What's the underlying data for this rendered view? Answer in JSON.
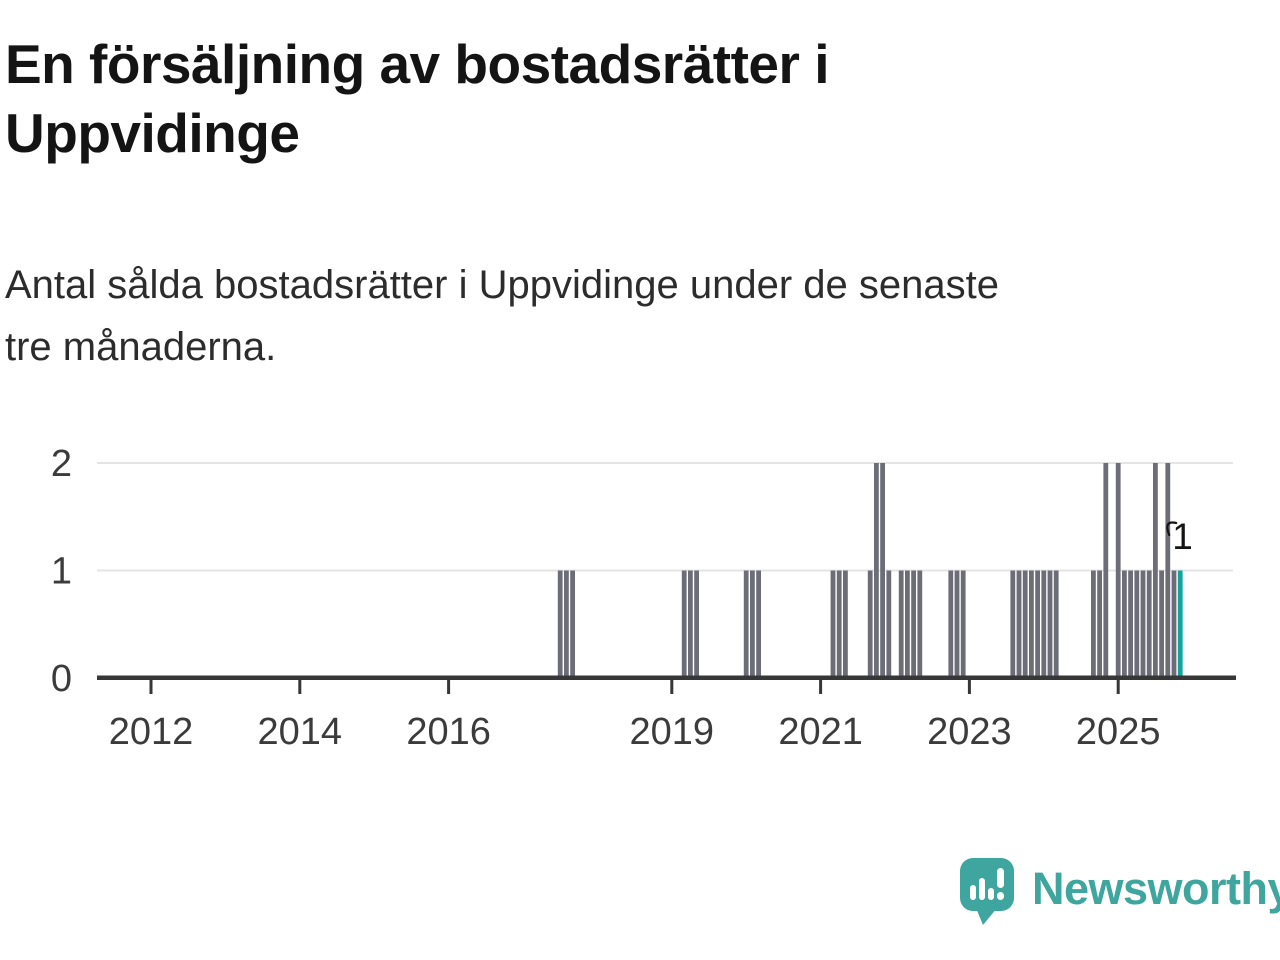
{
  "title_lines": [
    "En försäljning av bostadsrätter i",
    "Uppvidinge"
  ],
  "subtitle_lines": [
    "Antal sålda bostadsrätter i Uppvidinge under de senaste",
    "tre månaderna."
  ],
  "logo": {
    "text": "Newsworthy",
    "color": "#3ea69e"
  },
  "colors": {
    "bar": "#6d6d77",
    "highlight": "#10a49b",
    "grid": "#e4e4e4",
    "axis": "#373737",
    "tick_label": "#3b3b3b",
    "annotation": "#141414",
    "background": "#ffffff"
  },
  "chart_data": {
    "type": "bar",
    "title": "En försäljning av bostadsrätter i Uppvidinge",
    "subtitle": "Antal sålda bostadsrätter i Uppvidinge under de senaste tre månaderna.",
    "xlabel": "",
    "ylabel": "",
    "ylim": [
      0,
      2
    ],
    "y_ticks": [
      "0",
      "1",
      "2"
    ],
    "x_tick_years": [
      "2012",
      "2014",
      "2016",
      "2019",
      "2021",
      "2023",
      "2025"
    ],
    "x_range_months": [
      "2011-04",
      "2026-05"
    ],
    "grid": "horizontal",
    "legend": "none",
    "unlisted_months_value": 0,
    "highlight_month": "2025-11",
    "annotation": {
      "text": "1",
      "month": "2025-11",
      "value": 1
    },
    "months": [
      {
        "m": "2017-07",
        "v": 1
      },
      {
        "m": "2017-08",
        "v": 1
      },
      {
        "m": "2017-09",
        "v": 1
      },
      {
        "m": "2019-03",
        "v": 1
      },
      {
        "m": "2019-04",
        "v": 1
      },
      {
        "m": "2019-05",
        "v": 1
      },
      {
        "m": "2020-01",
        "v": 1
      },
      {
        "m": "2020-02",
        "v": 1
      },
      {
        "m": "2020-03",
        "v": 1
      },
      {
        "m": "2021-03",
        "v": 1
      },
      {
        "m": "2021-04",
        "v": 1
      },
      {
        "m": "2021-05",
        "v": 1
      },
      {
        "m": "2021-09",
        "v": 1
      },
      {
        "m": "2021-10",
        "v": 2
      },
      {
        "m": "2021-11",
        "v": 2
      },
      {
        "m": "2021-12",
        "v": 1
      },
      {
        "m": "2022-02",
        "v": 1
      },
      {
        "m": "2022-03",
        "v": 1
      },
      {
        "m": "2022-04",
        "v": 1
      },
      {
        "m": "2022-05",
        "v": 1
      },
      {
        "m": "2022-10",
        "v": 1
      },
      {
        "m": "2022-11",
        "v": 1
      },
      {
        "m": "2022-12",
        "v": 1
      },
      {
        "m": "2023-08",
        "v": 1
      },
      {
        "m": "2023-09",
        "v": 1
      },
      {
        "m": "2023-10",
        "v": 1
      },
      {
        "m": "2023-11",
        "v": 1
      },
      {
        "m": "2023-12",
        "v": 1
      },
      {
        "m": "2024-01",
        "v": 1
      },
      {
        "m": "2024-02",
        "v": 1
      },
      {
        "m": "2024-03",
        "v": 1
      },
      {
        "m": "2024-09",
        "v": 1
      },
      {
        "m": "2024-10",
        "v": 1
      },
      {
        "m": "2024-11",
        "v": 2
      },
      {
        "m": "2025-01",
        "v": 2
      },
      {
        "m": "2025-02",
        "v": 1
      },
      {
        "m": "2025-03",
        "v": 1
      },
      {
        "m": "2025-04",
        "v": 1
      },
      {
        "m": "2025-05",
        "v": 1
      },
      {
        "m": "2025-06",
        "v": 1
      },
      {
        "m": "2025-07",
        "v": 2
      },
      {
        "m": "2025-08",
        "v": 1
      },
      {
        "m": "2025-09",
        "v": 2
      },
      {
        "m": "2025-10",
        "v": 1
      },
      {
        "m": "2025-11",
        "v": 1
      }
    ]
  }
}
